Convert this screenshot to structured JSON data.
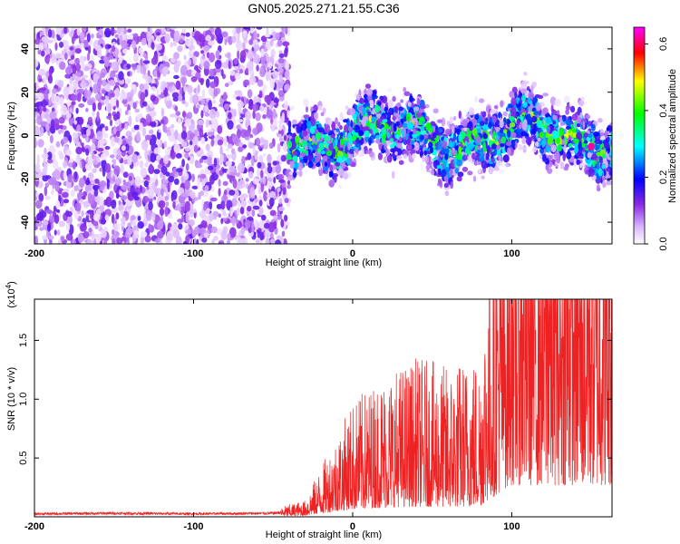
{
  "title": "GN05.2025.271.21.55.C36",
  "chart_data": [
    {
      "type": "heatmap",
      "xlabel": "Height of straight line (km)",
      "ylabel": "Frequency (Hz)",
      "xlim": [
        -200,
        163
      ],
      "ylim": [
        -50,
        50
      ],
      "xticks": [
        -200,
        -100,
        0,
        100
      ],
      "yticks": [
        -40,
        -20,
        0,
        20,
        40
      ],
      "colorbar": {
        "label": "Normalized spectral amplitude",
        "range": [
          0,
          0.65
        ],
        "ticks": [
          "0.0",
          "0.2",
          "0.4",
          "0.6"
        ],
        "colors": [
          "#ffffff",
          "#8a2be2",
          "#0000ff",
          "#00ffff",
          "#00ff00",
          "#ffff00",
          "#ff0000",
          "#ff00ff"
        ]
      },
      "regions": [
        {
          "x_range": [
            -200,
            -40
          ],
          "freq_range": [
            -50,
            50
          ],
          "amplitude": [
            0.02,
            0.15
          ]
        },
        {
          "x_range": [
            -40,
            163
          ],
          "freq_range": [
            -15,
            15
          ],
          "amplitude": [
            0.05,
            0.5
          ]
        }
      ],
      "peak": {
        "x": 150,
        "freq": -5,
        "amplitude": 0.62
      }
    },
    {
      "type": "line",
      "color": "#ee2222",
      "xlabel": "Height of straight line (km)",
      "ylabel": "SNR (10 * v/v)",
      "y_multiplier": "(x10",
      "y_multiplier_exp": "4",
      "xlim": [
        -200,
        163
      ],
      "ylim": [
        0,
        18500
      ],
      "xticks": [
        -200,
        -100,
        0,
        100
      ],
      "yticks": [
        "0.5",
        "1.0",
        "1.5"
      ],
      "ytick_values": [
        5000,
        10000,
        15000
      ],
      "x": [
        -200,
        -150,
        -100,
        -50,
        -30,
        -10,
        0,
        20,
        40,
        60,
        80,
        100,
        120,
        140,
        163
      ],
      "y": [
        250,
        300,
        250,
        300,
        600,
        3000,
        4200,
        5200,
        5800,
        5500,
        6000,
        18500,
        5800,
        4800,
        5200
      ]
    }
  ]
}
